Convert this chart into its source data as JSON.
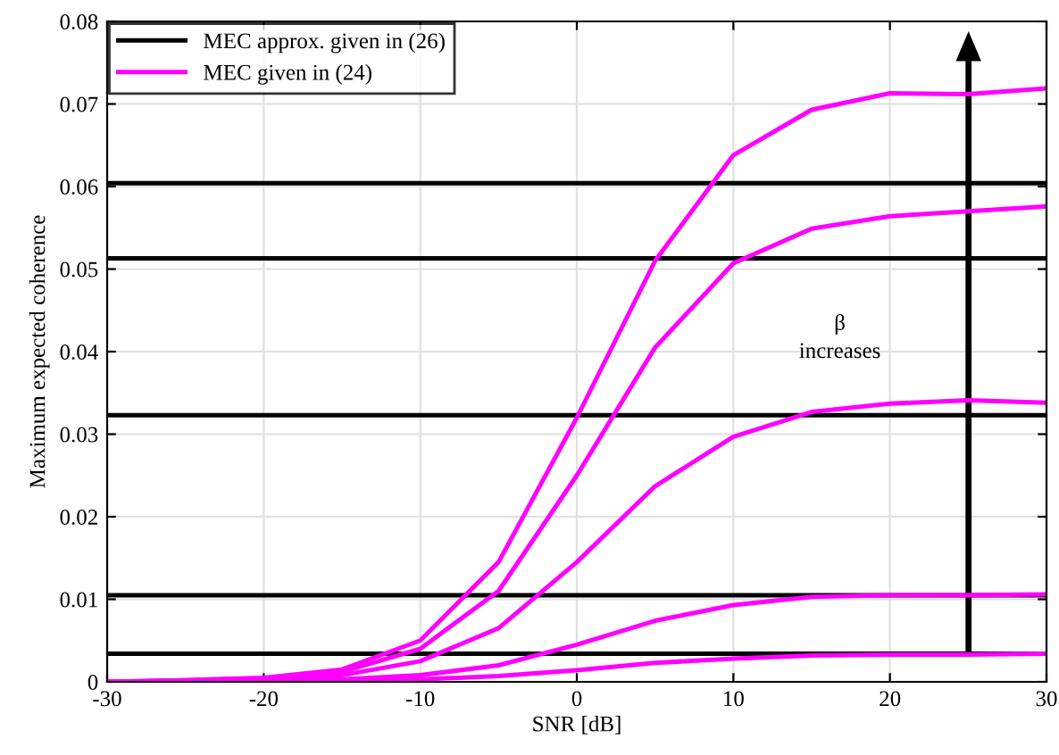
{
  "chart_data": {
    "type": "line",
    "xlabel": "SNR [dB]",
    "ylabel": "Maximum expected coherence",
    "x": [
      -30,
      -25,
      -20,
      -15,
      -10,
      -5,
      0,
      5,
      10,
      15,
      20,
      25,
      30
    ],
    "series": [
      {
        "name": "MEC approx. given in (26)",
        "color": "#000000",
        "values": [
          0.0604,
          0.0604,
          0.0604,
          0.0604,
          0.0604,
          0.0604,
          0.0604,
          0.0604,
          0.0604,
          0.0604,
          0.0604,
          0.0604,
          0.0604
        ]
      },
      {
        "color": "#000000",
        "values": [
          0.0513,
          0.0513,
          0.0513,
          0.0513,
          0.0513,
          0.0513,
          0.0513,
          0.0513,
          0.0513,
          0.0513,
          0.0513,
          0.0513,
          0.0513
        ]
      },
      {
        "color": "#000000",
        "values": [
          0.0323,
          0.0323,
          0.0323,
          0.0323,
          0.0323,
          0.0323,
          0.0323,
          0.0323,
          0.0323,
          0.0323,
          0.0323,
          0.0323,
          0.0323
        ]
      },
      {
        "color": "#000000",
        "values": [
          0.0105,
          0.0105,
          0.0105,
          0.0105,
          0.0105,
          0.0105,
          0.0105,
          0.0105,
          0.0105,
          0.0105,
          0.0105,
          0.0105,
          0.0105
        ]
      },
      {
        "color": "#000000",
        "values": [
          0.0034,
          0.0034,
          0.0034,
          0.0034,
          0.0034,
          0.0034,
          0.0034,
          0.0034,
          0.0034,
          0.0034,
          0.0034,
          0.0034,
          0.0034
        ]
      },
      {
        "name": "MEC given in (24)",
        "color": "#ff00ff",
        "values": [
          0,
          0.0002,
          0.0005,
          0.0015,
          0.005,
          0.0145,
          0.032,
          0.051,
          0.0638,
          0.0693,
          0.0713,
          0.0712,
          0.0719
        ]
      },
      {
        "color": "#ff00ff",
        "values": [
          0,
          0.0002,
          0.0004,
          0.0012,
          0.004,
          0.011,
          0.025,
          0.0405,
          0.0507,
          0.0549,
          0.0564,
          0.057,
          0.0576
        ]
      },
      {
        "color": "#ff00ff",
        "values": [
          0,
          0.0001,
          0.0003,
          0.0008,
          0.0025,
          0.0065,
          0.0145,
          0.0237,
          0.0297,
          0.0327,
          0.0337,
          0.0341,
          0.0338
        ]
      },
      {
        "color": "#ff00ff",
        "values": [
          0,
          0,
          0.0001,
          0.0003,
          0.0008,
          0.002,
          0.0045,
          0.0074,
          0.0093,
          0.0103,
          0.0105,
          0.0105,
          0.0106
        ]
      },
      {
        "color": "#ff00ff",
        "values": [
          0,
          0,
          0,
          0.0001,
          0.0003,
          0.0007,
          0.0014,
          0.0023,
          0.0028,
          0.0032,
          0.0033,
          0.0033,
          0.0034
        ]
      }
    ],
    "annotations": [
      "β\nincreases"
    ],
    "xlim": [
      -30,
      30
    ],
    "xticks": [
      -30,
      -20,
      -10,
      0,
      10,
      20,
      30
    ],
    "ylim": [
      0,
      0.08
    ],
    "yticks": [
      0,
      0.01,
      0.02,
      0.03,
      0.04,
      0.05,
      0.06,
      0.07,
      0.08
    ],
    "grid": true,
    "legend": "top left",
    "marker": "none",
    "line_style": "solid"
  }
}
